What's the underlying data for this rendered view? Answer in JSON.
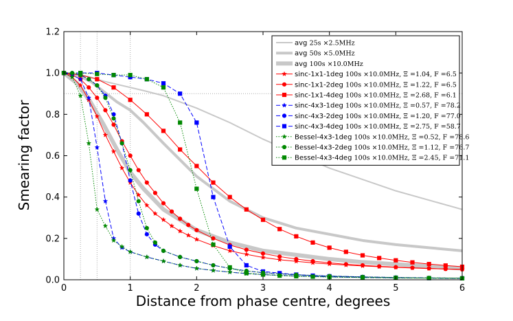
{
  "chart_data": {
    "type": "line",
    "title": "",
    "xlabel": "Distance from phase centre, degrees",
    "ylabel": "Smearing factor",
    "xlim": [
      0,
      6
    ],
    "ylim": [
      0,
      1.2
    ],
    "xticks": [
      0,
      1,
      2,
      3,
      4,
      5,
      6
    ],
    "yticks": [
      0.0,
      0.2,
      0.4,
      0.6,
      0.8,
      1.0,
      1.2
    ],
    "xtick_labels": [
      "0",
      "1",
      "2",
      "3",
      "4",
      "5",
      "6"
    ],
    "ytick_labels": [
      "0.0",
      "0.2",
      "0.4",
      "0.6",
      "0.8",
      "1.0",
      "1.2"
    ],
    "reference_lines": {
      "vertical_x": [
        0.25,
        0.5,
        1.0
      ],
      "horizontal_y": [
        0.9
      ]
    },
    "legend_position": "upper-right",
    "series": [
      {
        "name": "avg",
        "detail": "25s ×2.5MHz",
        "color": "#c8c8c8",
        "width": 2,
        "dash": "",
        "marker": "none",
        "x": [
          0,
          0.2,
          0.4,
          0.6,
          0.8,
          1.0,
          1.2,
          1.5,
          2.0,
          2.5,
          3.0,
          4.0,
          5.0,
          6.0
        ],
        "y": [
          1.0,
          0.995,
          0.98,
          0.96,
          0.945,
          0.93,
          0.915,
          0.89,
          0.83,
          0.76,
          0.68,
          0.54,
          0.43,
          0.34
        ]
      },
      {
        "name": "avg",
        "detail": "50s ×5.0MHz",
        "color": "#c8c8c8",
        "width": 4,
        "dash": "",
        "marker": "none",
        "x": [
          0,
          0.2,
          0.4,
          0.6,
          0.8,
          1.0,
          1.2,
          1.5,
          2.0,
          2.5,
          3.0,
          3.5,
          4.0,
          4.5,
          5.0,
          5.5,
          6.0
        ],
        "y": [
          1.0,
          0.99,
          0.96,
          0.91,
          0.86,
          0.82,
          0.76,
          0.66,
          0.5,
          0.38,
          0.3,
          0.25,
          0.22,
          0.19,
          0.17,
          0.155,
          0.14
        ]
      },
      {
        "name": "avg",
        "detail": "100s ×10.0MHz",
        "color": "#c8c8c8",
        "width": 6,
        "dash": "",
        "marker": "none",
        "x": [
          0,
          0.2,
          0.4,
          0.6,
          0.8,
          1.0,
          1.2,
          1.5,
          2.0,
          2.5,
          3.0,
          3.5,
          4.0,
          4.5,
          5.0,
          5.5,
          6.0
        ],
        "y": [
          1.0,
          0.95,
          0.86,
          0.75,
          0.63,
          0.52,
          0.44,
          0.34,
          0.24,
          0.18,
          0.14,
          0.12,
          0.1,
          0.085,
          0.075,
          0.065,
          0.055
        ]
      },
      {
        "name": "sinc-1x1-1deg",
        "detail": "100s ×10.0MHz",
        "xi": "Ξ =1.04",
        "f": "F =6.5",
        "color": "#ff0000",
        "width": 1,
        "dash": "",
        "marker": "star",
        "x": [
          0,
          0.125,
          0.25,
          0.375,
          0.5,
          0.625,
          0.75,
          0.875,
          1.0,
          1.125,
          1.25,
          1.375,
          1.5,
          1.625,
          1.75,
          1.875,
          2.0,
          2.25,
          2.5,
          2.75,
          3.0,
          3.25,
          3.5,
          3.75,
          4.0,
          4.25,
          4.5,
          4.75,
          5.0,
          5.25,
          5.5,
          5.75,
          6.0
        ],
        "y": [
          1.0,
          0.98,
          0.94,
          0.87,
          0.79,
          0.7,
          0.62,
          0.54,
          0.47,
          0.41,
          0.36,
          0.32,
          0.29,
          0.26,
          0.235,
          0.215,
          0.195,
          0.165,
          0.14,
          0.123,
          0.108,
          0.097,
          0.089,
          0.082,
          0.076,
          0.071,
          0.067,
          0.063,
          0.06,
          0.057,
          0.054,
          0.052,
          0.05
        ]
      },
      {
        "name": "sinc-1x1-2deg",
        "detail": "100s ×10.0MHz",
        "xi": "Ξ =1.22",
        "f": "F =6.5",
        "color": "#ff0000",
        "width": 1,
        "dash": "",
        "marker": "circle",
        "x": [
          0,
          0.125,
          0.25,
          0.375,
          0.5,
          0.625,
          0.75,
          0.875,
          1.0,
          1.125,
          1.25,
          1.375,
          1.5,
          1.625,
          1.75,
          1.875,
          2.0,
          2.25,
          2.5,
          2.75,
          3.0,
          3.25,
          3.5,
          3.75,
          4.0,
          4.25,
          4.5,
          4.75,
          5.0,
          5.25,
          5.5,
          5.75,
          6.0
        ],
        "y": [
          1.0,
          0.99,
          0.97,
          0.93,
          0.88,
          0.82,
          0.75,
          0.67,
          0.6,
          0.53,
          0.47,
          0.42,
          0.37,
          0.33,
          0.295,
          0.265,
          0.24,
          0.2,
          0.168,
          0.145,
          0.127,
          0.112,
          0.1,
          0.09,
          0.082,
          0.075,
          0.07,
          0.065,
          0.061,
          0.058,
          0.055,
          0.052,
          0.05
        ]
      },
      {
        "name": "sinc-1x1-4deg",
        "detail": "100s ×10.0MHz",
        "xi": "Ξ =2.68",
        "f": "F =6.1",
        "color": "#ff0000",
        "width": 1,
        "dash": "",
        "marker": "square",
        "x": [
          0,
          0.25,
          0.5,
          0.75,
          1.0,
          1.25,
          1.5,
          1.75,
          2.0,
          2.25,
          2.5,
          2.75,
          3.0,
          3.25,
          3.5,
          3.75,
          4.0,
          4.25,
          4.5,
          4.75,
          5.0,
          5.25,
          5.5,
          5.75,
          6.0
        ],
        "y": [
          1.0,
          0.99,
          0.97,
          0.93,
          0.87,
          0.8,
          0.72,
          0.63,
          0.55,
          0.47,
          0.4,
          0.34,
          0.29,
          0.245,
          0.21,
          0.18,
          0.155,
          0.135,
          0.118,
          0.105,
          0.094,
          0.084,
          0.076,
          0.069,
          0.063
        ]
      },
      {
        "name": "sinc-4x3-1deg",
        "detail": "100s ×10.0MHz",
        "xi": "Ξ =0.57",
        "f": "F =78.2",
        "color": "#0000ff",
        "width": 1,
        "dash": "6,3",
        "marker": "star",
        "x": [
          0,
          0.125,
          0.25,
          0.375,
          0.5,
          0.625,
          0.75,
          0.875,
          1.0,
          1.25,
          1.5,
          1.75,
          2.0,
          2.25,
          2.5,
          2.75,
          3.0,
          3.5,
          4.0,
          4.5,
          5.0,
          5.5,
          6.0
        ],
        "y": [
          1.0,
          0.99,
          0.97,
          0.88,
          0.64,
          0.38,
          0.2,
          0.155,
          0.135,
          0.11,
          0.09,
          0.07,
          0.055,
          0.045,
          0.037,
          0.03,
          0.025,
          0.018,
          0.014,
          0.011,
          0.009,
          0.008,
          0.007
        ]
      },
      {
        "name": "sinc-4x3-2deg",
        "detail": "100s ×10.0MHz",
        "xi": "Ξ =1.20",
        "f": "F =77.0",
        "color": "#0000ff",
        "width": 1,
        "dash": "6,3",
        "marker": "circle",
        "x": [
          0,
          0.125,
          0.25,
          0.375,
          0.5,
          0.625,
          0.75,
          0.875,
          1.0,
          1.125,
          1.25,
          1.375,
          1.5,
          1.75,
          2.0,
          2.25,
          2.5,
          2.75,
          3.0,
          3.5,
          4.0,
          4.5,
          5.0,
          5.5,
          6.0
        ],
        "y": [
          1.0,
          1.0,
          0.99,
          0.97,
          0.94,
          0.89,
          0.8,
          0.66,
          0.48,
          0.32,
          0.22,
          0.17,
          0.14,
          0.11,
          0.09,
          0.07,
          0.055,
          0.043,
          0.034,
          0.024,
          0.018,
          0.014,
          0.011,
          0.009,
          0.008
        ]
      },
      {
        "name": "sinc-4x3-4deg",
        "detail": "100s ×10.0MHz",
        "xi": "Ξ =2.75",
        "f": "F =58.7",
        "color": "#0000ff",
        "width": 1,
        "dash": "6,3",
        "marker": "square",
        "x": [
          0,
          0.25,
          0.5,
          0.75,
          1.0,
          1.25,
          1.5,
          1.75,
          2.0,
          2.25,
          2.5,
          2.75,
          3.0,
          3.25,
          3.5,
          3.75,
          4.0,
          4.5,
          5.0,
          5.5,
          6.0
        ],
        "y": [
          1.0,
          1.0,
          1.0,
          0.99,
          0.98,
          0.97,
          0.95,
          0.9,
          0.76,
          0.4,
          0.16,
          0.07,
          0.04,
          0.032,
          0.025,
          0.02,
          0.017,
          0.013,
          0.01,
          0.008,
          0.007
        ]
      },
      {
        "name": "Bessel-4x3-1deg",
        "detail": "100s ×10.0MHz",
        "xi": "Ξ =0.52",
        "f": "F =78.6",
        "color": "#008800",
        "width": 1,
        "dash": "1.5,2",
        "marker": "star",
        "x": [
          0,
          0.125,
          0.25,
          0.375,
          0.5,
          0.625,
          0.75,
          0.875,
          1.0,
          1.25,
          1.5,
          1.75,
          2.0,
          2.25,
          2.5,
          2.75,
          3.0,
          3.5,
          4.0,
          4.5,
          5.0,
          5.5,
          6.0
        ],
        "y": [
          1.0,
          0.98,
          0.89,
          0.66,
          0.34,
          0.26,
          0.19,
          0.16,
          0.135,
          0.11,
          0.09,
          0.07,
          0.055,
          0.045,
          0.037,
          0.03,
          0.025,
          0.018,
          0.014,
          0.011,
          0.009,
          0.008,
          0.007
        ]
      },
      {
        "name": "Bessel-4x3-2deg",
        "detail": "100s ×10.0MHz",
        "xi": "Ξ =1.12",
        "f": "F =76.7",
        "color": "#008800",
        "width": 1,
        "dash": "1.5,2",
        "marker": "circle",
        "x": [
          0,
          0.125,
          0.25,
          0.375,
          0.5,
          0.625,
          0.75,
          0.875,
          1.0,
          1.125,
          1.25,
          1.375,
          1.5,
          1.75,
          2.0,
          2.25,
          2.5,
          2.75,
          3.0,
          3.5,
          4.0,
          4.5,
          5.0,
          5.5,
          6.0
        ],
        "y": [
          1.0,
          1.0,
          0.99,
          0.97,
          0.94,
          0.88,
          0.78,
          0.66,
          0.53,
          0.38,
          0.25,
          0.18,
          0.14,
          0.11,
          0.09,
          0.07,
          0.055,
          0.043,
          0.034,
          0.024,
          0.018,
          0.014,
          0.011,
          0.009,
          0.008
        ]
      },
      {
        "name": "Bessel-4x3-4deg",
        "detail": "100s ×10.0MHz",
        "xi": "Ξ =2.45",
        "f": "F =71.1",
        "color": "#008800",
        "width": 1,
        "dash": "1.5,2",
        "marker": "square",
        "x": [
          0,
          0.25,
          0.5,
          0.75,
          1.0,
          1.25,
          1.5,
          1.75,
          2.0,
          2.25,
          2.5,
          2.75,
          3.0,
          3.25,
          3.5,
          3.75,
          4.0,
          4.5,
          5.0,
          5.5,
          6.0
        ],
        "y": [
          1.0,
          1.0,
          0.995,
          0.99,
          0.99,
          0.97,
          0.93,
          0.76,
          0.44,
          0.17,
          0.06,
          0.032,
          0.025,
          0.02,
          0.017,
          0.015,
          0.013,
          0.011,
          0.009,
          0.008,
          0.007
        ]
      }
    ]
  }
}
